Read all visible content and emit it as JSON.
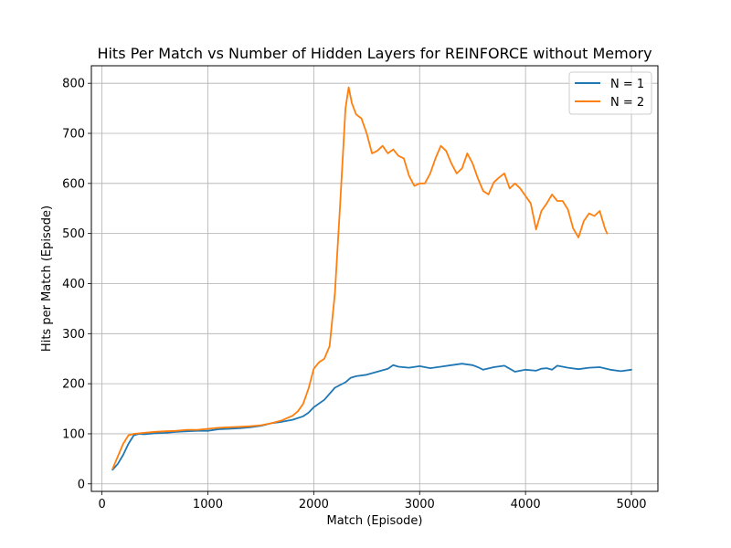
{
  "chart_data": {
    "type": "line",
    "title": "Hits Per Match vs Number of Hidden Layers for REINFORCE without Memory",
    "xlabel": "Match (Episode)",
    "ylabel": "Hits per Match (Episode)",
    "xlim": [
      -100,
      5250
    ],
    "ylim": [
      -15,
      835
    ],
    "xticks": [
      0,
      1000,
      2000,
      3000,
      4000,
      5000
    ],
    "yticks": [
      0,
      100,
      200,
      300,
      400,
      500,
      600,
      700,
      800
    ],
    "grid": true,
    "legend_position": "top-right",
    "series": [
      {
        "name": "N = 1",
        "color": "#1f77b4",
        "points": [
          [
            100,
            28
          ],
          [
            150,
            40
          ],
          [
            200,
            58
          ],
          [
            250,
            80
          ],
          [
            300,
            97
          ],
          [
            350,
            100
          ],
          [
            400,
            99
          ],
          [
            500,
            101
          ],
          [
            600,
            102
          ],
          [
            700,
            104
          ],
          [
            800,
            105
          ],
          [
            900,
            106
          ],
          [
            1000,
            106
          ],
          [
            1100,
            109
          ],
          [
            1200,
            110
          ],
          [
            1300,
            111
          ],
          [
            1400,
            113
          ],
          [
            1500,
            116
          ],
          [
            1600,
            121
          ],
          [
            1700,
            124
          ],
          [
            1800,
            128
          ],
          [
            1900,
            135
          ],
          [
            1950,
            142
          ],
          [
            2000,
            153
          ],
          [
            2100,
            168
          ],
          [
            2200,
            192
          ],
          [
            2300,
            203
          ],
          [
            2350,
            212
          ],
          [
            2400,
            215
          ],
          [
            2500,
            218
          ],
          [
            2600,
            224
          ],
          [
            2700,
            230
          ],
          [
            2750,
            237
          ],
          [
            2800,
            234
          ],
          [
            2900,
            232
          ],
          [
            3000,
            235
          ],
          [
            3100,
            231
          ],
          [
            3200,
            234
          ],
          [
            3300,
            237
          ],
          [
            3400,
            240
          ],
          [
            3500,
            237
          ],
          [
            3550,
            233
          ],
          [
            3600,
            228
          ],
          [
            3700,
            233
          ],
          [
            3800,
            236
          ],
          [
            3850,
            230
          ],
          [
            3900,
            224
          ],
          [
            4000,
            228
          ],
          [
            4100,
            226
          ],
          [
            4150,
            230
          ],
          [
            4200,
            231
          ],
          [
            4250,
            228
          ],
          [
            4300,
            236
          ],
          [
            4350,
            234
          ],
          [
            4400,
            232
          ],
          [
            4500,
            229
          ],
          [
            4600,
            232
          ],
          [
            4700,
            233
          ],
          [
            4800,
            228
          ],
          [
            4900,
            225
          ],
          [
            5000,
            228
          ]
        ]
      },
      {
        "name": "N = 2",
        "color": "#ff7f0e",
        "points": [
          [
            100,
            30
          ],
          [
            150,
            55
          ],
          [
            200,
            80
          ],
          [
            250,
            97
          ],
          [
            300,
            100
          ],
          [
            400,
            102
          ],
          [
            500,
            104
          ],
          [
            600,
            105
          ],
          [
            700,
            106
          ],
          [
            800,
            108
          ],
          [
            900,
            108
          ],
          [
            1000,
            110
          ],
          [
            1100,
            112
          ],
          [
            1200,
            113
          ],
          [
            1300,
            114
          ],
          [
            1400,
            115
          ],
          [
            1500,
            117
          ],
          [
            1600,
            121
          ],
          [
            1700,
            127
          ],
          [
            1800,
            136
          ],
          [
            1850,
            145
          ],
          [
            1900,
            160
          ],
          [
            1950,
            190
          ],
          [
            2000,
            230
          ],
          [
            2050,
            243
          ],
          [
            2100,
            250
          ],
          [
            2150,
            275
          ],
          [
            2200,
            380
          ],
          [
            2250,
            560
          ],
          [
            2300,
            750
          ],
          [
            2330,
            792
          ],
          [
            2360,
            760
          ],
          [
            2400,
            738
          ],
          [
            2450,
            730
          ],
          [
            2500,
            700
          ],
          [
            2550,
            660
          ],
          [
            2600,
            665
          ],
          [
            2650,
            675
          ],
          [
            2700,
            660
          ],
          [
            2750,
            668
          ],
          [
            2800,
            655
          ],
          [
            2850,
            650
          ],
          [
            2900,
            615
          ],
          [
            2950,
            595
          ],
          [
            3000,
            600
          ],
          [
            3050,
            600
          ],
          [
            3100,
            620
          ],
          [
            3150,
            650
          ],
          [
            3200,
            675
          ],
          [
            3250,
            665
          ],
          [
            3300,
            640
          ],
          [
            3350,
            620
          ],
          [
            3400,
            630
          ],
          [
            3450,
            660
          ],
          [
            3500,
            640
          ],
          [
            3550,
            610
          ],
          [
            3600,
            585
          ],
          [
            3650,
            578
          ],
          [
            3700,
            602
          ],
          [
            3750,
            612
          ],
          [
            3800,
            620
          ],
          [
            3850,
            590
          ],
          [
            3900,
            600
          ],
          [
            3950,
            590
          ],
          [
            4000,
            575
          ],
          [
            4050,
            560
          ],
          [
            4100,
            508
          ],
          [
            4150,
            545
          ],
          [
            4200,
            560
          ],
          [
            4250,
            578
          ],
          [
            4300,
            565
          ],
          [
            4350,
            565
          ],
          [
            4400,
            548
          ],
          [
            4450,
            510
          ],
          [
            4500,
            492
          ],
          [
            4550,
            525
          ],
          [
            4600,
            540
          ],
          [
            4650,
            535
          ],
          [
            4700,
            545
          ],
          [
            4750,
            510
          ],
          [
            4770,
            500
          ]
        ]
      }
    ]
  }
}
